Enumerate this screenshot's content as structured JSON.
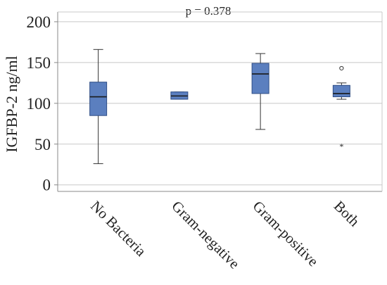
{
  "annotation": "p = 0.378",
  "chart_data": {
    "type": "box",
    "ylabel": "IGFBP-2 ng/ml",
    "xlabel": "",
    "ylim": [
      -8,
      212
    ],
    "yticks": [
      0,
      50,
      100,
      150,
      200
    ],
    "grid": true,
    "categories": [
      "No Bacteria",
      "Gram-negative",
      "Gram-positive",
      "Both"
    ],
    "boxes": [
      {
        "category": "No Bacteria",
        "whisker_low": 26,
        "q1": 85,
        "median": 108,
        "q3": 126,
        "whisker_high": 166,
        "outliers": [],
        "extremes": []
      },
      {
        "category": "Gram-negative",
        "whisker_low": 105,
        "q1": 105,
        "median": 109,
        "q3": 114,
        "whisker_high": 114,
        "outliers": [],
        "extremes": []
      },
      {
        "category": "Gram-positive",
        "whisker_low": 68,
        "q1": 112,
        "median": 136,
        "q3": 149,
        "whisker_high": 161,
        "outliers": [],
        "extremes": []
      },
      {
        "category": "Both",
        "whisker_low": 105,
        "q1": 108,
        "median": 112,
        "q3": 122,
        "whisker_high": 125,
        "outliers": [
          143
        ],
        "extremes": [
          48
        ]
      }
    ],
    "colors": {
      "box_fill": "#5b7fbf",
      "box_stroke": "#2f4e86",
      "grid": "#c8c8c8",
      "axis": "#888888"
    }
  }
}
